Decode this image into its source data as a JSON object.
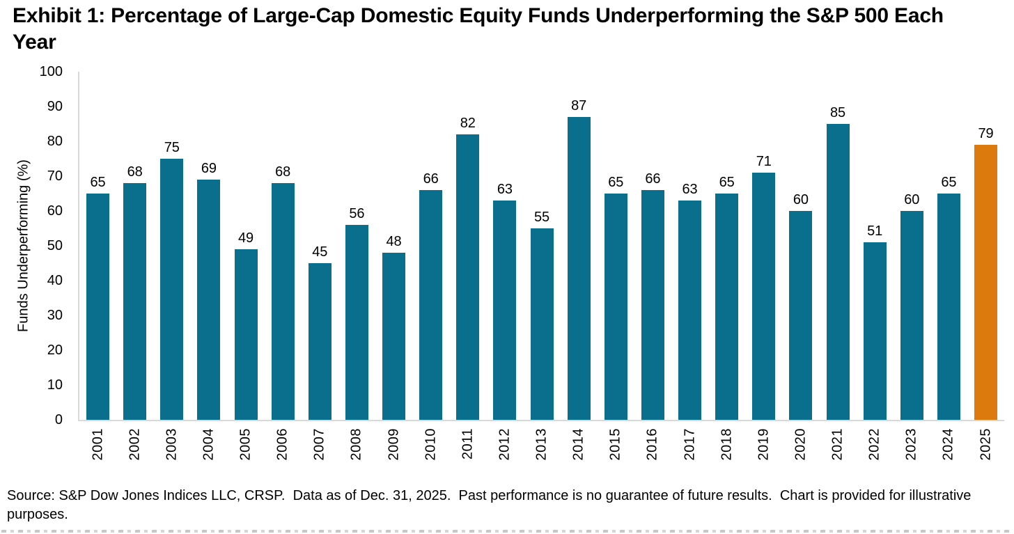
{
  "title": "Exhibit 1: Percentage of Large-Cap Domestic Equity Funds Underperforming the S&P 500 Each Year",
  "source_note": "Source: S&P Dow Jones Indices LLC, CRSP.  Data as of Dec. 31, 2025.  Past performance is no guarantee of future results.  Chart is provided for illustrative purposes.",
  "colors": {
    "bar_teal": "#0a6f8d",
    "bar_orange": "#dd7a0e",
    "axis_line": "#d9d9d9",
    "text": "#000000"
  },
  "chart_data": {
    "type": "bar",
    "title": "Exhibit 1: Percentage of Large-Cap Domestic Equity Funds Underperforming the S&P 500 Each Year",
    "xlabel": "",
    "ylabel": "Funds Underperforming (%)",
    "ylim": [
      0,
      100
    ],
    "yticks": [
      0,
      10,
      20,
      30,
      40,
      50,
      60,
      70,
      80,
      90,
      100
    ],
    "grid": false,
    "legend": false,
    "data_labels": true,
    "categories": [
      "2001",
      "2002",
      "2003",
      "2004",
      "2005",
      "2006",
      "2007",
      "2008",
      "2009",
      "2010",
      "2011",
      "2012",
      "2013",
      "2014",
      "2015",
      "2016",
      "2017",
      "2018",
      "2019",
      "2020",
      "2021",
      "2022",
      "2023",
      "2024",
      "2025"
    ],
    "values": [
      65,
      68,
      75,
      69,
      49,
      68,
      45,
      56,
      48,
      66,
      82,
      63,
      55,
      87,
      65,
      66,
      63,
      65,
      71,
      60,
      85,
      51,
      60,
      65,
      79
    ],
    "highlight_index": 24,
    "highlight_note": "2025 bar shown in orange; all other years teal"
  }
}
